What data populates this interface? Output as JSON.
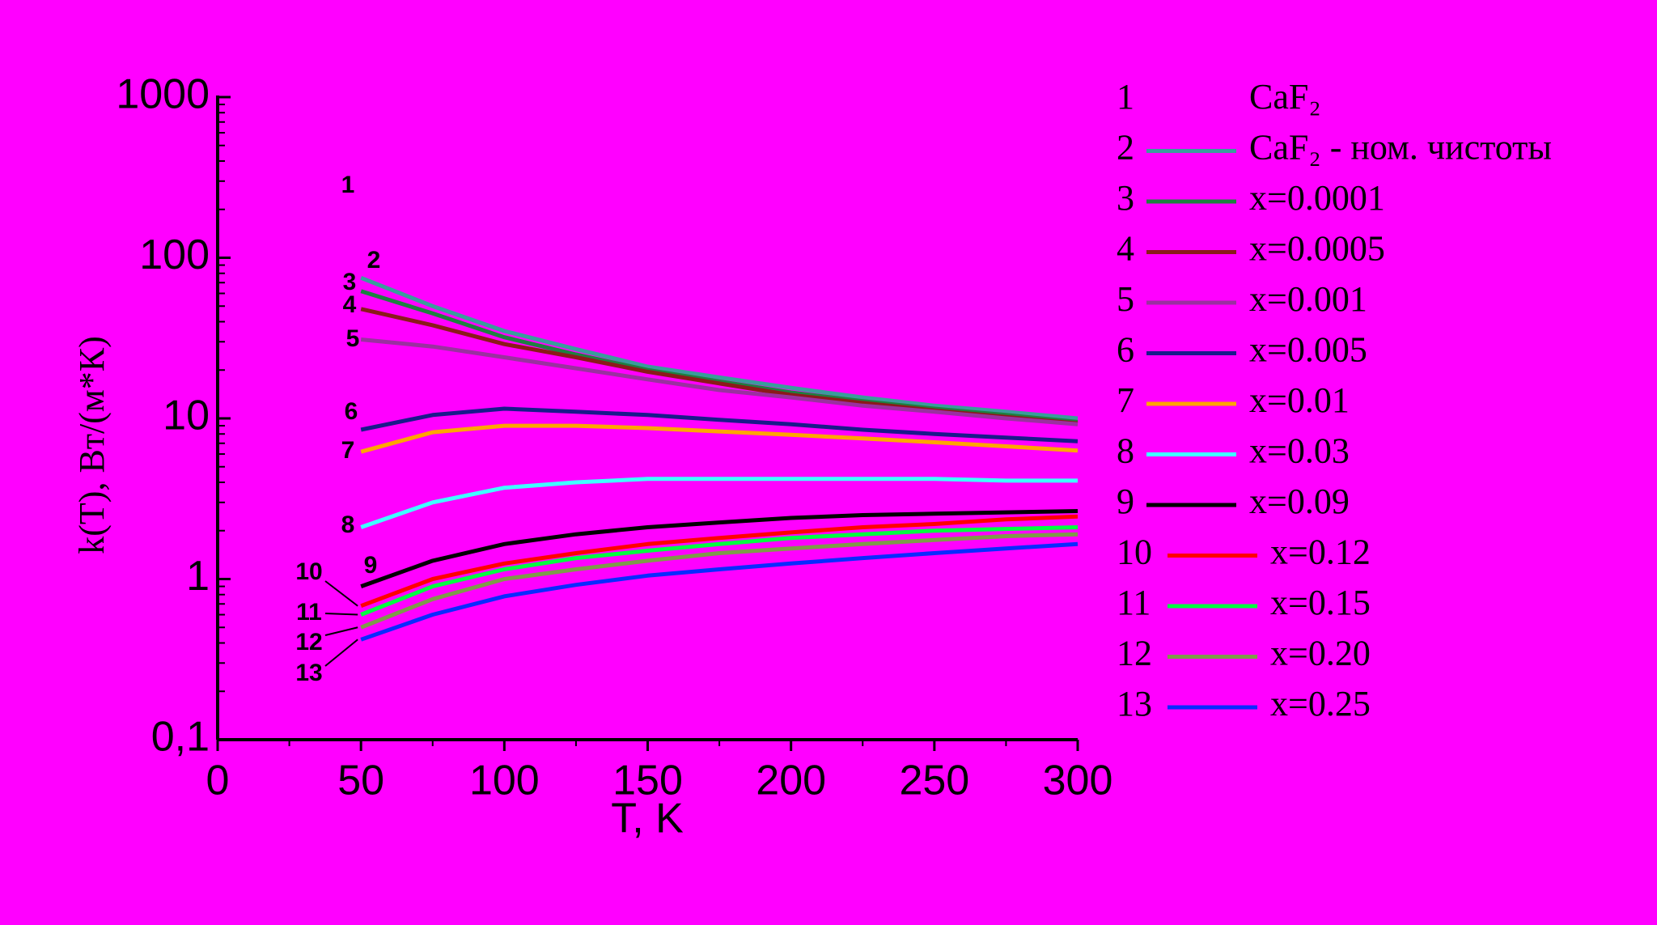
{
  "chart_data": {
    "type": "line",
    "xlabel": "T, K",
    "ylabel": "k(T), Вт/(м*К)",
    "x": [
      50,
      75,
      100,
      125,
      150,
      175,
      200,
      225,
      250,
      275,
      300
    ],
    "xlim": [
      0,
      300
    ],
    "xticks": [
      0,
      50,
      100,
      150,
      200,
      250,
      300
    ],
    "ylim": [
      0.1,
      1000
    ],
    "yscale": "log",
    "yticks": [
      {
        "value": 0.1,
        "label": "0,1"
      },
      1,
      10,
      100,
      1000
    ],
    "series": [
      {
        "label": "1",
        "name": "CaF₂",
        "color": null,
        "values": [
          null,
          null,
          null,
          null,
          null,
          null,
          null,
          null,
          null,
          null,
          null
        ]
      },
      {
        "label": "2",
        "name": "CaF₂ - ном. чистоты",
        "color": "#3a9c9c",
        "values": [
          75,
          50,
          35,
          27,
          21,
          18,
          15.5,
          13.5,
          12,
          11,
          10
        ]
      },
      {
        "label": "3",
        "name": "x=0.0001",
        "color": "#1e8040",
        "values": [
          62,
          45,
          32,
          25,
          20,
          17,
          14.5,
          12.8,
          11.5,
          10.5,
          9.5
        ]
      },
      {
        "label": "4",
        "name": "x=0.0005",
        "color": "#8b1a1a",
        "values": [
          48,
          38,
          29,
          24,
          19.5,
          16.5,
          14,
          12.5,
          11.2,
          10.2,
          9.3
        ]
      },
      {
        "label": "5",
        "name": "x=0.001",
        "color": "#9b30a0",
        "values": [
          31,
          28,
          24,
          20.5,
          17.5,
          15,
          13.5,
          12,
          11,
          10,
          9.2
        ]
      },
      {
        "label": "6",
        "name": "x=0.005",
        "color": "#1a1a8b",
        "values": [
          8.5,
          10.5,
          11.5,
          11,
          10.5,
          9.8,
          9.2,
          8.5,
          8,
          7.6,
          7.2
        ]
      },
      {
        "label": "7",
        "name": "x=0.01",
        "color": "#ffa500",
        "values": [
          6.2,
          8.2,
          9,
          9,
          8.7,
          8.3,
          7.9,
          7.5,
          7.1,
          6.7,
          6.3
        ]
      },
      {
        "label": "8",
        "name": "x=0.03",
        "color": "#40ffff",
        "values": [
          2.1,
          3.0,
          3.7,
          4.0,
          4.2,
          4.2,
          4.2,
          4.2,
          4.2,
          4.1,
          4.1
        ]
      },
      {
        "label": "9",
        "name": "x=0.09",
        "color": "#000000",
        "values": [
          0.9,
          1.3,
          1.65,
          1.9,
          2.1,
          2.25,
          2.4,
          2.5,
          2.55,
          2.6,
          2.65
        ]
      },
      {
        "label": "10",
        "name": "x=0.12",
        "color": "#ff0000",
        "values": [
          0.68,
          1.0,
          1.25,
          1.45,
          1.65,
          1.8,
          1.95,
          2.1,
          2.2,
          2.35,
          2.45
        ]
      },
      {
        "label": "11",
        "name": "x=0.15",
        "color": "#00ff40",
        "values": [
          0.6,
          0.9,
          1.15,
          1.35,
          1.5,
          1.65,
          1.8,
          1.9,
          2.0,
          2.05,
          2.1
        ]
      },
      {
        "label": "12",
        "name": "x=0.20",
        "color": "#7f9a4a",
        "values": [
          0.5,
          0.75,
          1.0,
          1.15,
          1.3,
          1.45,
          1.55,
          1.65,
          1.75,
          1.85,
          1.9
        ]
      },
      {
        "label": "13",
        "name": "x=0.25",
        "color": "#0a2aff",
        "values": [
          0.42,
          0.6,
          0.78,
          0.92,
          1.05,
          1.15,
          1.25,
          1.35,
          1.45,
          1.55,
          1.65
        ]
      }
    ]
  }
}
